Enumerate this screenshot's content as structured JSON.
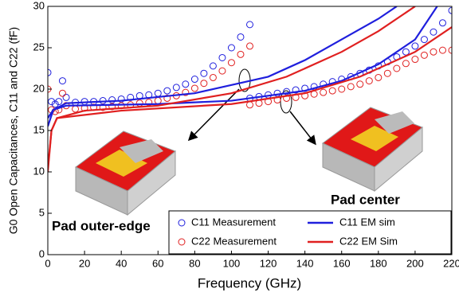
{
  "chart_data": {
    "type": "line",
    "xlabel": "Frequency (GHz)",
    "ylabel": "G0 Open Capacitances, C11 and C22 (fF)",
    "xlim": [
      0,
      220
    ],
    "ylim": [
      0,
      30
    ],
    "xticks": [
      0,
      20,
      40,
      60,
      80,
      100,
      120,
      140,
      160,
      180,
      200,
      220
    ],
    "yticks": [
      0,
      5,
      10,
      15,
      20,
      25,
      30
    ],
    "annotations": [
      "Pad outer-edge",
      "Pad center"
    ],
    "series": [
      {
        "name": "C11 Measurement",
        "color": "#1f1fdd",
        "marker": "circle",
        "curves": [
          {
            "x": [
              0,
              2,
              4,
              6,
              8,
              10,
              15,
              20,
              25,
              30,
              35,
              40,
              45,
              50,
              55,
              60,
              65,
              70,
              75,
              80,
              85,
              90,
              95,
              100,
              105,
              110
            ],
            "values": [
              22,
              18.5,
              18.2,
              18.5,
              21,
              19,
              18.4,
              18.5,
              18.5,
              18.6,
              18.7,
              18.8,
              19,
              19.2,
              19.3,
              19.5,
              19.8,
              20.2,
              20.6,
              21.2,
              21.9,
              22.8,
              23.8,
              25,
              26.3,
              27.8
            ]
          },
          {
            "x": [
              110,
              115,
              120,
              125,
              130,
              135,
              140,
              145,
              150,
              155,
              160,
              165,
              170,
              175,
              180,
              185,
              190,
              195,
              200,
              205,
              210,
              215,
              220
            ],
            "values": [
              18.9,
              19.1,
              19.3,
              19.5,
              19.7,
              19.9,
              20.1,
              20.3,
              20.6,
              20.9,
              21.2,
              21.5,
              21.9,
              22.3,
              22.8,
              23.3,
              23.9,
              24.5,
              25.2,
              26,
              26.9,
              28,
              29.5
            ]
          }
        ]
      },
      {
        "name": "C22 Measurement",
        "color": "#e02020",
        "marker": "circle",
        "curves": [
          {
            "x": [
              0,
              2,
              4,
              6,
              8,
              10,
              15,
              20,
              25,
              30,
              35,
              40,
              45,
              50,
              55,
              60,
              65,
              70,
              75,
              80,
              85,
              90,
              95,
              100,
              105,
              110
            ],
            "values": [
              20,
              17.5,
              17.3,
              17.5,
              19.5,
              18,
              17.6,
              17.7,
              17.8,
              17.8,
              17.9,
              18,
              18.1,
              18.3,
              18.4,
              18.6,
              18.9,
              19.2,
              19.6,
              20.1,
              20.7,
              21.4,
              22.2,
              23.2,
              24.2,
              25.2
            ]
          },
          {
            "x": [
              110,
              115,
              120,
              125,
              130,
              135,
              140,
              145,
              150,
              155,
              160,
              165,
              170,
              175,
              180,
              185,
              190,
              195,
              200,
              205,
              210,
              215,
              220
            ],
            "values": [
              18.1,
              18.3,
              18.5,
              18.7,
              18.9,
              19,
              19.2,
              19.4,
              19.6,
              19.8,
              20,
              20.3,
              20.6,
              21,
              21.4,
              21.9,
              22.5,
              23.1,
              23.6,
              24.1,
              24.5,
              24.7,
              24.7
            ]
          }
        ]
      },
      {
        "name": "C11 EM sim",
        "color": "#1f1fdd",
        "marker": "line",
        "curves": [
          {
            "x": [
              0,
              3,
              10,
              40,
              80,
              100,
              120,
              140,
              160,
              180,
              190
            ],
            "values": [
              15.5,
              17.5,
              18.3,
              18.6,
              19.5,
              20.5,
              21.5,
              23.5,
              26,
              28.5,
              30
            ]
          },
          {
            "x": [
              0,
              3,
              10,
              60,
              100,
              140,
              160,
              180,
              200,
              212
            ],
            "values": [
              16.5,
              17.5,
              18,
              18.2,
              18.6,
              19.8,
              21,
              23,
              26,
              30
            ]
          }
        ]
      },
      {
        "name": "C22 EM Sim",
        "color": "#e02020",
        "marker": "line",
        "curves": [
          {
            "x": [
              0,
              2,
              5,
              20,
              60,
              100,
              130,
              160,
              180,
              200
            ],
            "values": [
              10,
              15,
              16.5,
              17.4,
              18,
              19.5,
              21.5,
              24.5,
              27,
              30
            ]
          },
          {
            "x": [
              0,
              2,
              5,
              40,
              100,
              140,
              170,
              200,
              220
            ],
            "values": [
              10.5,
              15,
              16.5,
              17.4,
              18.2,
              19.5,
              21.5,
              24.5,
              27.5
            ]
          }
        ]
      }
    ]
  }
}
